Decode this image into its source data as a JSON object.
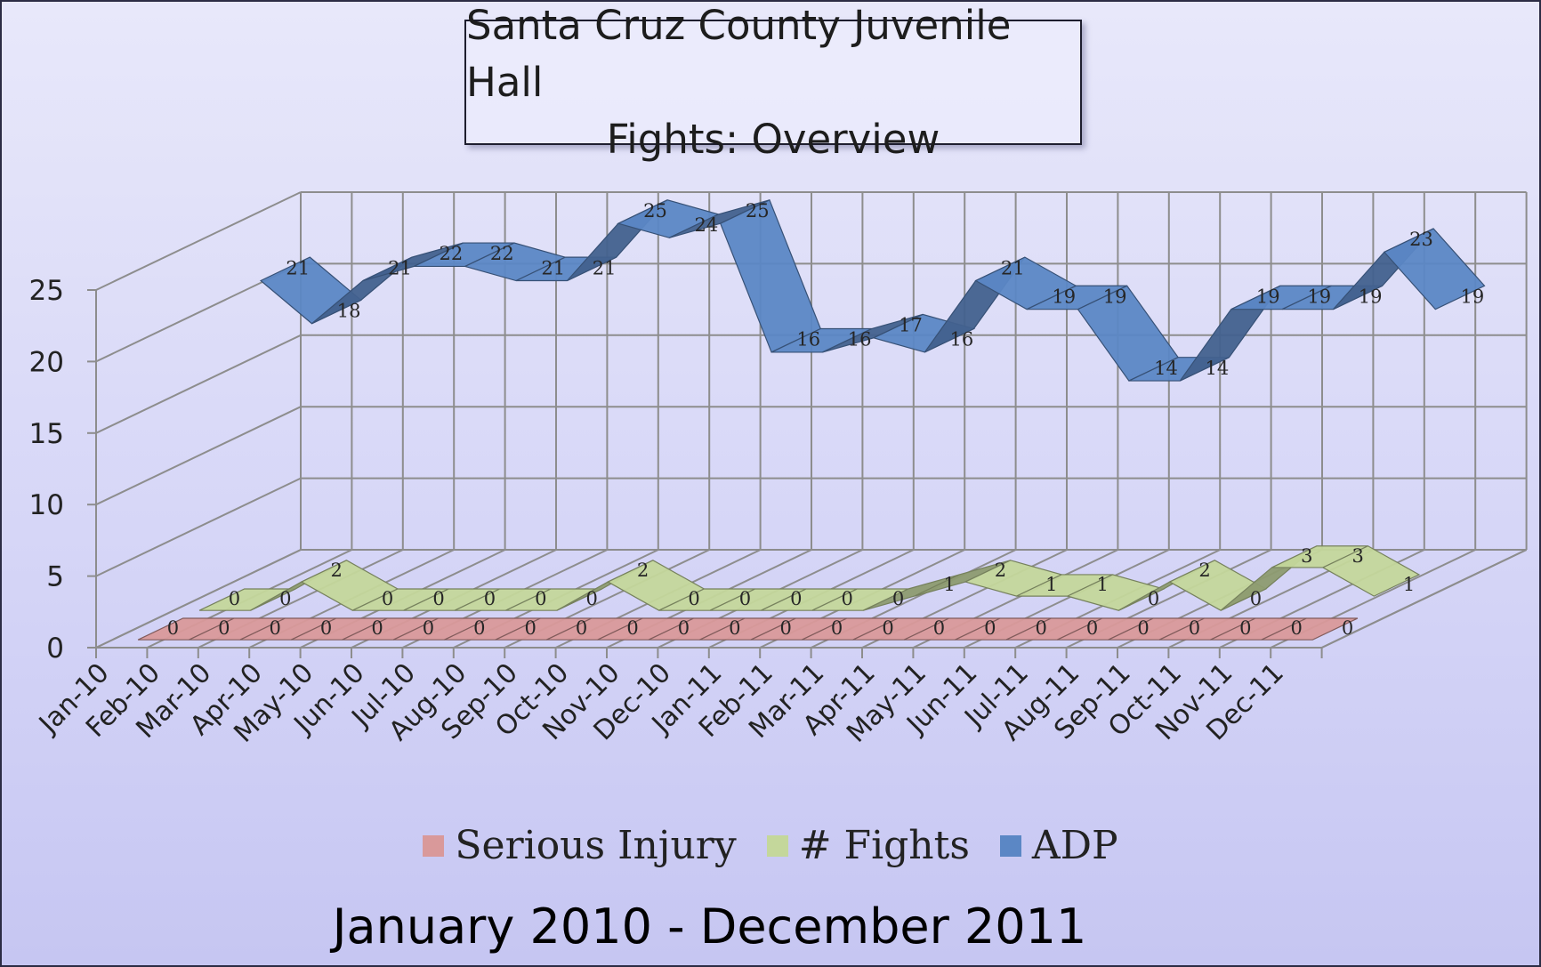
{
  "chart_data": {
    "type": "line",
    "title_lines": [
      "Santa Cruz County Juvenile Hall",
      "Fights: Overview"
    ],
    "subtitle": "January 2010 - December 2011",
    "xlabel": "",
    "ylabel": "",
    "ylim": [
      0,
      25
    ],
    "yticks": [
      0,
      5,
      10,
      15,
      20,
      25
    ],
    "grid": true,
    "legend_position": "bottom",
    "categories": [
      "Jan-10",
      "Feb-10",
      "Mar-10",
      "Apr-10",
      "May-10",
      "Jun-10",
      "Jul-10",
      "Aug-10",
      "Sep-10",
      "Oct-10",
      "Nov-10",
      "Dec-10",
      "Jan-11",
      "Feb-11",
      "Mar-11",
      "Apr-11",
      "May-11",
      "Jun-11",
      "Jul-11",
      "Aug-11",
      "Sep-11",
      "Oct-11",
      "Nov-11",
      "Dec-11"
    ],
    "series": [
      {
        "name": "Serious Injury",
        "color": "#d9999a",
        "values": [
          0,
          0,
          0,
          0,
          0,
          0,
          0,
          0,
          0,
          0,
          0,
          0,
          0,
          0,
          0,
          0,
          0,
          0,
          0,
          0,
          0,
          0,
          0,
          0
        ]
      },
      {
        "name": "# Fights",
        "color": "#c4d79b",
        "values": [
          0,
          0,
          2,
          0,
          0,
          0,
          0,
          0,
          2,
          0,
          0,
          0,
          0,
          0,
          1,
          2,
          1,
          1,
          0,
          2,
          0,
          3,
          3,
          1
        ]
      },
      {
        "name": "ADP",
        "color": "#5b87c5",
        "values": [
          21,
          18,
          21,
          22,
          22,
          21,
          21,
          25,
          24,
          25,
          16,
          16,
          17,
          16,
          21,
          19,
          19,
          14,
          14,
          19,
          19,
          19,
          23,
          19
        ]
      }
    ]
  }
}
